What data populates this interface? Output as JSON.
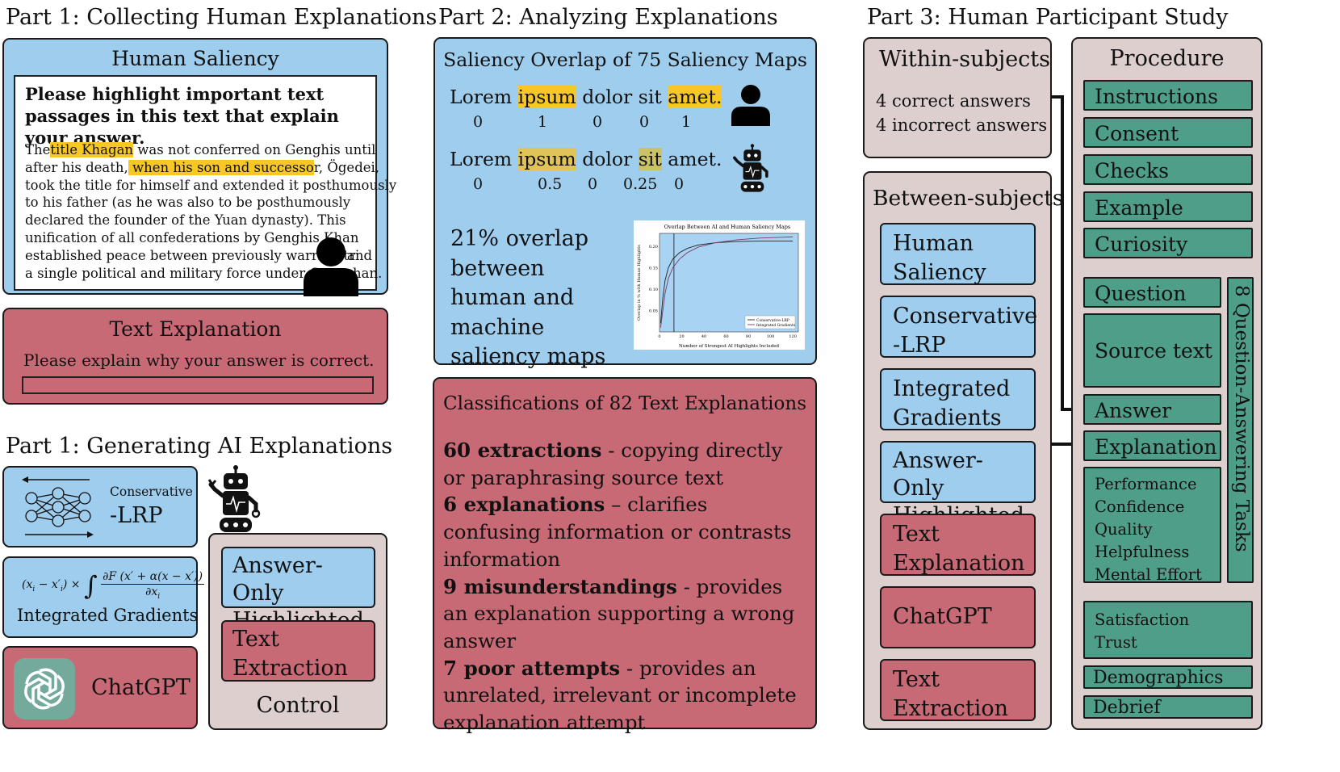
{
  "part1a": {
    "heading": "Part 1: Collecting Human Explanations",
    "saliency_title": "Human Saliency",
    "prompt": "Please highlight important text passages in this text that explain your answer.",
    "passage": {
      "l1a": "The",
      "l1b": "title Khagan",
      "l1c": " was not conferred on Genghis until",
      "l2a": "after his death,",
      "l2b": " when his son and successo",
      "l2c": "r, Ögedei,",
      "l3": "took the title for himself and extended it posthumously",
      "l4": "to his father (as he was also to be posthumously",
      "l5": "declared the founder of the Yuan dynasty). This",
      "l6": "unification of all confederations by Genghis Khan",
      "l7": "established peace between previously warring tri",
      "l7b": "and",
      "l8": "a single political and military force under Geng",
      "l8b": "han."
    },
    "text_exp_title": "Text Explanation",
    "text_exp_prompt": "Please explain why your answer is correct."
  },
  "part1b": {
    "heading": "Part 1: Generating AI Explanations",
    "lrp_small": "Conservative",
    "lrp_big": "-LRP",
    "ig_label": "Integrated Gradients",
    "chatgpt": "ChatGPT",
    "control_label": "Control",
    "answer_only": "Answer-Only Highlighted",
    "text_extraction": "Text Extraction"
  },
  "part2": {
    "heading": "Part 2: Analyzing Explanations",
    "overlap_title": "Saliency Overlap of 75 Saliency Maps",
    "human_words": [
      "Lorem",
      "ipsum",
      "dolor",
      "sit",
      "amet."
    ],
    "human_scores": [
      "0",
      "1",
      "0",
      "0",
      "1"
    ],
    "ai_words": [
      "Lorem",
      "ipsum",
      "dolor",
      "sit",
      "amet."
    ],
    "ai_scores": [
      "0",
      "0.5",
      "0",
      "0.25",
      "0"
    ],
    "overlap_text": "21% overlap between human and machine saliency maps",
    "class_title": "Classifications of 82 Text Explanations",
    "items": [
      {
        "bold": "60 extractions",
        "rest": " - copying directly or paraphrasing source text"
      },
      {
        "bold": "6 explanations",
        "rest": " – clarifies confusing information or contrasts information"
      },
      {
        "bold": "9 misunderstandings",
        "rest": " - provides an explanation supporting a wrong answer"
      },
      {
        "bold": "7 poor attempts",
        "rest": " - provides an unrelated, irrelevant or incomplete explanation attempt"
      }
    ]
  },
  "chart_data": {
    "type": "line",
    "title": "Overlap Between AI and Human Saliency Maps",
    "xlabel": "Number of Strongest AI Highlights Included",
    "ylabel": "Overlap in % with Human Highlights",
    "x_ticks": [
      "0",
      "20",
      "40",
      "60",
      "80",
      "100",
      "120"
    ],
    "y_ticks": [
      "0.05",
      "0.10",
      "0.15",
      "0.20"
    ],
    "xlim": [
      0,
      125
    ],
    "ylim": [
      0,
      0.23
    ],
    "legend_position": "bottom-right",
    "series": [
      {
        "name": "Conservative-LRP",
        "color": "#222222",
        "x": [
          1,
          3,
          5,
          8,
          12,
          18,
          25,
          35,
          50,
          70,
          90,
          110,
          120
        ],
        "y": [
          0.02,
          0.08,
          0.12,
          0.15,
          0.17,
          0.185,
          0.195,
          0.203,
          0.208,
          0.211,
          0.212,
          0.212,
          0.212
        ]
      },
      {
        "name": "Integrated Gradients",
        "color": "#7a3a6a",
        "x": [
          1,
          3,
          5,
          8,
          12,
          18,
          25,
          35,
          50,
          70,
          90,
          110,
          120
        ],
        "y": [
          0.01,
          0.05,
          0.09,
          0.125,
          0.15,
          0.17,
          0.185,
          0.198,
          0.208,
          0.215,
          0.219,
          0.221,
          0.222
        ]
      }
    ],
    "vline_x": 13,
    "grid": false
  },
  "part3": {
    "heading": "Part 3: Human Participant Study",
    "within_title": "Within-subjects",
    "within_l1": "4 correct answers",
    "within_l2": "4 incorrect answers",
    "between_title": "Between-subjects",
    "conditions": [
      "Human Saliency",
      "Conservative -LRP",
      "Integrated Gradients",
      "Answer-Only Highlighted",
      "Text Explanation",
      "ChatGPT",
      "Text Extraction"
    ],
    "procedure_title": "Procedure",
    "steps": [
      "Instructions",
      "Consent",
      "Checks",
      "Example",
      "Curiosity"
    ],
    "task_steps": [
      "Question",
      "Source text",
      "Answer",
      "Explanation"
    ],
    "measures": [
      "Performance",
      "Confidence",
      "Quality",
      "Helpfulness",
      "Mental Effort"
    ],
    "tasks_label": "8 Question-Answering Tasks",
    "post1": "Satisfaction",
    "post2": "Trust",
    "demographics": "Demographics",
    "debrief": "Debrief"
  }
}
